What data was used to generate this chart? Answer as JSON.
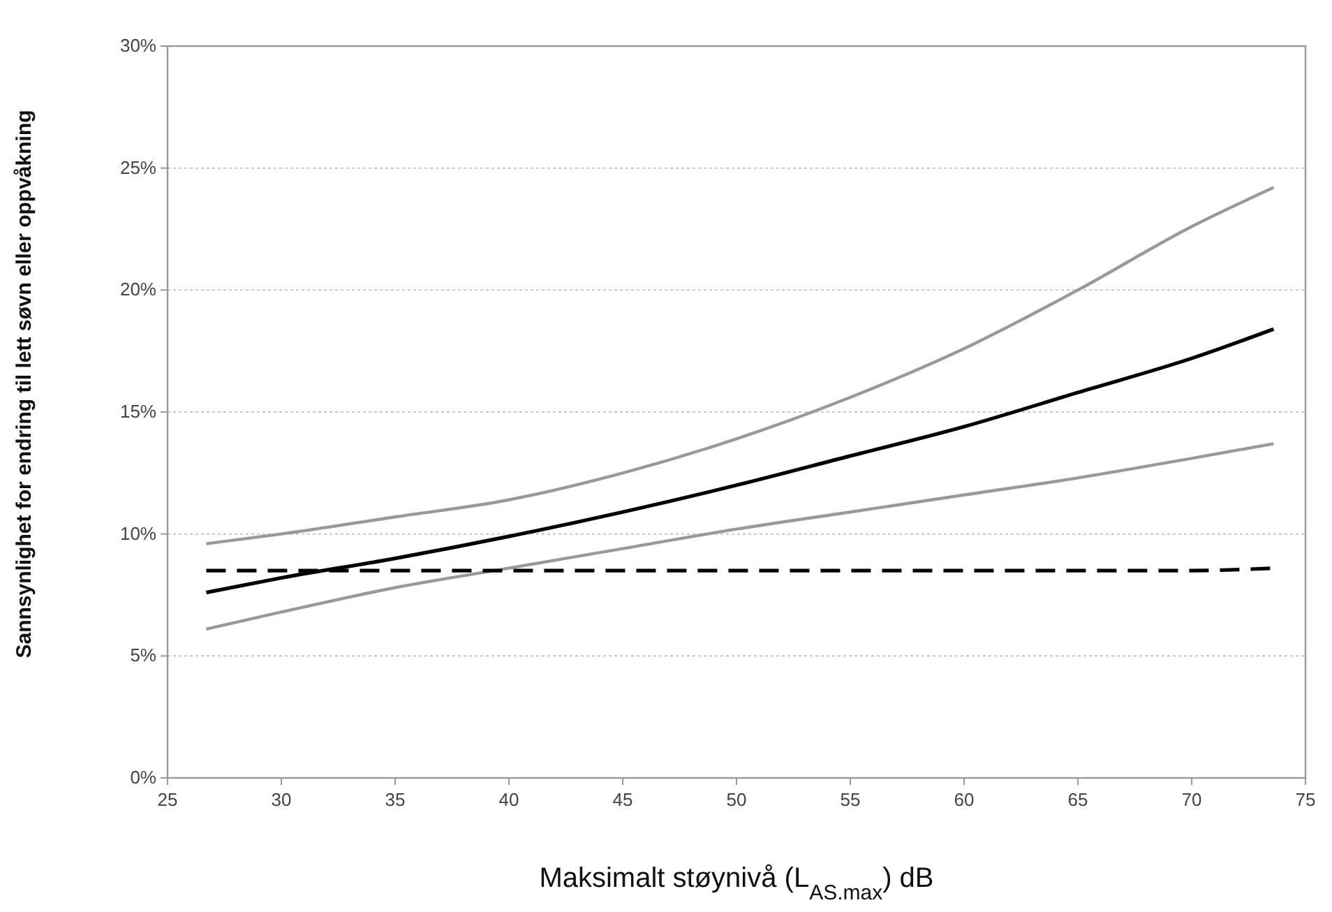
{
  "chart_data": {
    "type": "line",
    "xlabel": "Maksimalt støynivå (L$_{AS.max}$) dB",
    "ylabel": "Sannsynlighet for endring til lett søvn eller oppvåkning",
    "x": [
      26.7,
      30,
      35,
      40,
      45,
      50,
      55,
      60,
      65,
      70,
      73.6
    ],
    "series": [
      {
        "color": "#999999",
        "values": [
          9.6,
          10.0,
          10.7,
          11.4,
          12.5,
          13.9,
          15.6,
          17.6,
          20.0,
          22.6,
          24.2
        ]
      },
      {
        "color": "#000000",
        "values": [
          7.6,
          8.2,
          9.0,
          9.9,
          10.9,
          12.0,
          13.2,
          14.4,
          15.8,
          17.2,
          18.4
        ]
      },
      {
        "color": "#999999",
        "values": [
          6.1,
          6.8,
          7.8,
          8.6,
          9.4,
          10.2,
          10.9,
          11.6,
          12.3,
          13.1,
          13.7
        ]
      },
      {
        "color": "#000000",
        "line_style": "dashed",
        "values": [
          8.5,
          8.5,
          8.5,
          8.5,
          8.5,
          8.5,
          8.5,
          8.5,
          8.5,
          8.5,
          8.6
        ]
      }
    ],
    "xlim": [
      25,
      75
    ],
    "xticks": [
      25,
      30,
      35,
      40,
      45,
      50,
      55,
      60,
      65,
      70,
      75
    ],
    "ylim": [
      0,
      30
    ],
    "yticks": [
      {
        "value": 0,
        "label": "0%"
      },
      {
        "value": 5,
        "label": "5%"
      },
      {
        "value": 10,
        "label": "10%"
      },
      {
        "value": 15,
        "label": "15%"
      },
      {
        "value": 20,
        "label": "20%"
      },
      {
        "value": 25,
        "label": "25%"
      },
      {
        "value": 30,
        "label": "30%"
      }
    ],
    "grid": "y",
    "marker": "none",
    "line_style": "solid"
  }
}
